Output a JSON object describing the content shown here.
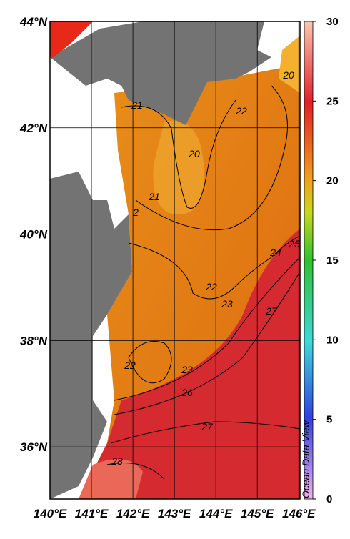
{
  "map": {
    "xlim": [
      140,
      146.03
    ],
    "ylim": [
      35.02,
      44
    ],
    "xticks": [
      {
        "value": 140,
        "label": "140°E"
      },
      {
        "value": 141,
        "label": "141°E"
      },
      {
        "value": 142,
        "label": "142°E"
      },
      {
        "value": 143,
        "label": "143°E"
      },
      {
        "value": 144,
        "label": "144°E"
      },
      {
        "value": 145,
        "label": "145°E"
      },
      {
        "value": 146,
        "label": "146°E"
      }
    ],
    "yticks": [
      {
        "value": 44,
        "label": "44°N"
      },
      {
        "value": 42,
        "label": "42°N"
      },
      {
        "value": 40,
        "label": "40°N"
      },
      {
        "value": 38,
        "label": "38°N"
      },
      {
        "value": 36,
        "label": "36°N"
      }
    ],
    "contour_labels": [
      20,
      21,
      22,
      20,
      21,
      2,
      22,
      23,
      24,
      25,
      27,
      22,
      23,
      26,
      27,
      28
    ]
  },
  "colorbar": {
    "lim": [
      0,
      30
    ],
    "ticks": [
      0,
      5,
      10,
      15,
      20,
      25,
      30
    ]
  },
  "watermark": "Ocean Data View"
}
